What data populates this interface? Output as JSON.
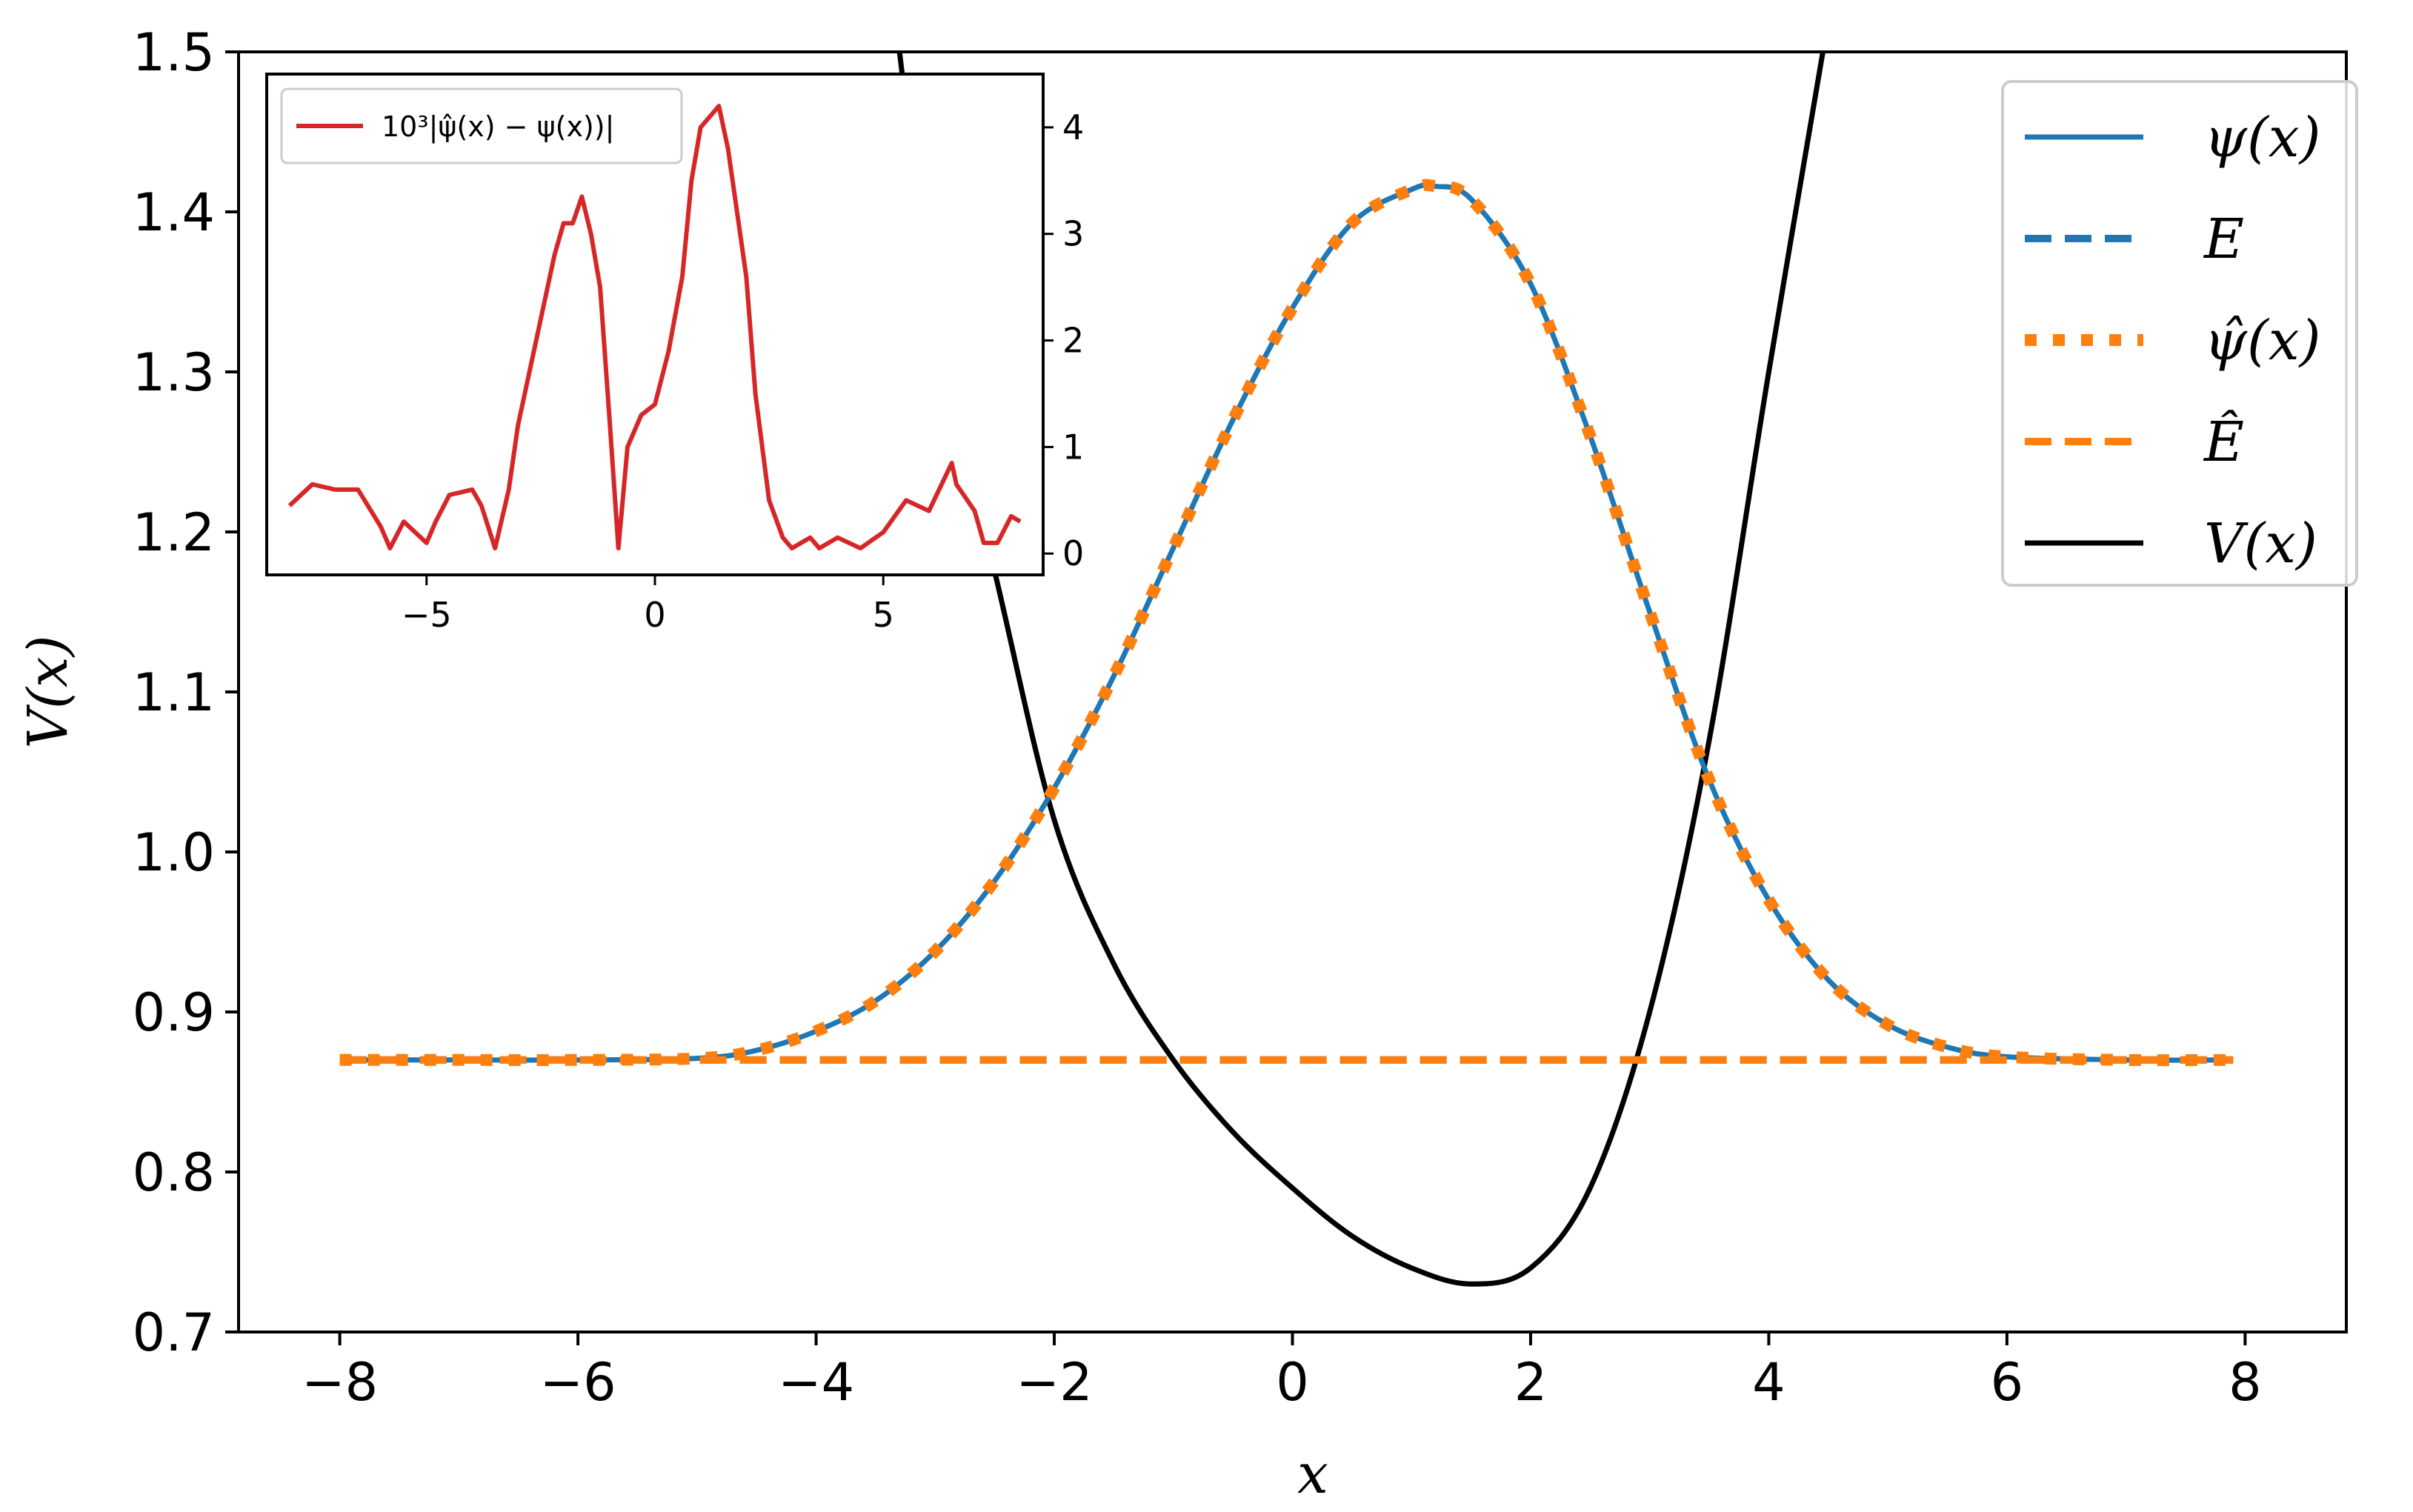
{
  "chart_data": [
    {
      "type": "line",
      "title": "",
      "xlabel": "x",
      "ylabel": "V(x)",
      "xlim": [
        -8.85,
        8.85
      ],
      "ylim": [
        0.7,
        1.5
      ],
      "xticks": [
        -8,
        -6,
        -4,
        -2,
        0,
        2,
        4,
        6,
        8
      ],
      "xtick_labels": [
        "−8",
        "−6",
        "−4",
        "−2",
        "0",
        "2",
        "4",
        "6",
        "8"
      ],
      "yticks": [
        0.7,
        0.8,
        0.9,
        1.0,
        1.1,
        1.2,
        1.3,
        1.4,
        1.5
      ],
      "ytick_labels": [
        "0.7",
        "0.8",
        "0.9",
        "1.0",
        "1.1",
        "1.2",
        "1.3",
        "1.4",
        "1.5"
      ],
      "grid": false,
      "legend_position": "top-right",
      "series": [
        {
          "name": "ψ(x)",
          "style": "solid",
          "color": "#1f77b4",
          "x": [
            -8,
            -7,
            -6,
            -5,
            -4.5,
            -4,
            -3.5,
            -3,
            -2.5,
            -2,
            -1.5,
            -1,
            -0.5,
            0,
            0.5,
            1,
            1.2,
            1.5,
            2,
            2.5,
            3,
            3.5,
            4,
            4.5,
            5,
            5.5,
            6,
            7,
            7.9
          ],
          "y": [
            0.87,
            0.87,
            0.87,
            0.871,
            0.876,
            0.888,
            0.907,
            0.938,
            0.982,
            1.04,
            1.11,
            1.19,
            1.27,
            1.34,
            1.393,
            1.414,
            1.416,
            1.408,
            1.355,
            1.26,
            1.15,
            1.045,
            0.97,
            0.92,
            0.892,
            0.878,
            0.872,
            0.87,
            0.87
          ]
        },
        {
          "name": "E",
          "style": "dashed",
          "color": "#1f77b4",
          "x": [
            -8,
            7.9
          ],
          "y": [
            0.87,
            0.87
          ]
        },
        {
          "name": "ψ̂(x)",
          "style": "dotted",
          "color": "#ff7f0e",
          "x": [
            -8,
            -7,
            -6,
            -5,
            -4.5,
            -4,
            -3.5,
            -3,
            -2.5,
            -2,
            -1.5,
            -1,
            -0.5,
            0,
            0.5,
            1,
            1.2,
            1.5,
            2,
            2.5,
            3,
            3.5,
            4,
            4.5,
            5,
            5.5,
            6,
            7,
            7.9
          ],
          "y": [
            0.87,
            0.87,
            0.87,
            0.871,
            0.876,
            0.888,
            0.907,
            0.938,
            0.982,
            1.04,
            1.11,
            1.19,
            1.27,
            1.34,
            1.393,
            1.414,
            1.416,
            1.408,
            1.355,
            1.26,
            1.15,
            1.045,
            0.97,
            0.92,
            0.892,
            0.878,
            0.872,
            0.87,
            0.87
          ]
        },
        {
          "name": "Ê",
          "style": "dashed",
          "color": "#ff7f0e",
          "x": [
            -8,
            7.9
          ],
          "y": [
            0.87,
            0.87
          ]
        },
        {
          "name": "V(x)",
          "style": "solid",
          "color": "#000000",
          "x": [
            -3.3,
            -3,
            -2.5,
            -2,
            -1.5,
            -1,
            -0.5,
            0,
            0.5,
            1,
            1.5,
            2,
            2.5,
            3,
            3.5,
            4,
            4.5
          ],
          "y": [
            1.5,
            1.33,
            1.175,
            1.02,
            0.93,
            0.87,
            0.825,
            0.79,
            0.76,
            0.74,
            0.73,
            0.74,
            0.79,
            0.9,
            1.07,
            1.3,
            1.52
          ]
        }
      ]
    },
    {
      "type": "line",
      "title": "",
      "xlabel": "",
      "ylabel": "",
      "xlim": [
        -8.5,
        8.5
      ],
      "ylim": [
        -0.2,
        4.5
      ],
      "xticks": [
        -5,
        0,
        5
      ],
      "xtick_labels": [
        "−5",
        "0",
        "5"
      ],
      "yticks": [
        0,
        1,
        2,
        3,
        4
      ],
      "ytick_labels": [
        "0",
        "1",
        "2",
        "3",
        "4"
      ],
      "y_axis_side": "right",
      "grid": false,
      "legend_position": "top-left",
      "series": [
        {
          "name": "10³|ψ̂(x) − ψ(x))|",
          "style": "solid",
          "color": "#d62728",
          "x": [
            -8,
            -7.5,
            -7,
            -6.5,
            -6,
            -5.8,
            -5.5,
            -5,
            -4.8,
            -4.5,
            -4,
            -3.8,
            -3.5,
            -3.2,
            -3,
            -2.5,
            -2.2,
            -2,
            -1.8,
            -1.6,
            -1.4,
            -1.2,
            -1,
            -0.8,
            -0.6,
            -0.3,
            0,
            0.3,
            0.6,
            0.8,
            1,
            1.2,
            1.4,
            1.6,
            1.8,
            2,
            2.2,
            2.5,
            2.8,
            3,
            3.2,
            3.4,
            3.6,
            4,
            4.5,
            5,
            5.5,
            6,
            6.5,
            6.6,
            7,
            7.2,
            7.5,
            7.8,
            8
          ],
          "y": [
            0.45,
            0.65,
            0.6,
            0.6,
            0.25,
            0.05,
            0.3,
            0.1,
            0.3,
            0.55,
            0.6,
            0.45,
            0.05,
            0.6,
            1.2,
            2.2,
            2.8,
            3.1,
            3.1,
            3.35,
            3.0,
            2.5,
            1.3,
            0.05,
            1.0,
            1.3,
            1.4,
            1.9,
            2.6,
            3.5,
            4.0,
            4.1,
            4.2,
            3.8,
            3.2,
            2.6,
            1.5,
            0.5,
            0.15,
            0.05,
            0.1,
            0.15,
            0.05,
            0.15,
            0.05,
            0.2,
            0.5,
            0.4,
            0.85,
            0.65,
            0.4,
            0.1,
            0.1,
            0.35,
            0.3
          ]
        }
      ]
    }
  ]
}
